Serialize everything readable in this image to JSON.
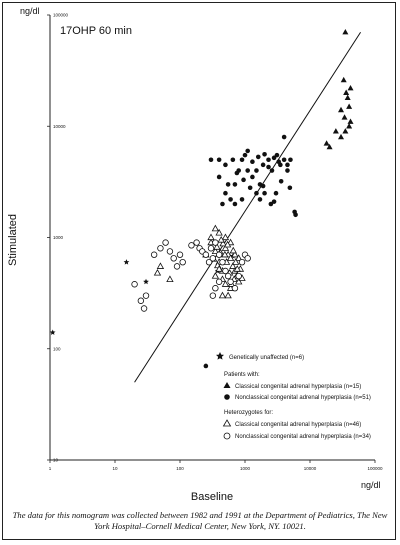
{
  "chart_data": {
    "type": "scatter",
    "title": "17OHP 60 min",
    "xlabel": "Baseline",
    "ylabel": "Stimulated",
    "x_unit": "ng/dl",
    "y_unit": "ng/dl",
    "xscale": "log",
    "yscale": "log",
    "xlim": [
      1,
      100000
    ],
    "ylim": [
      10,
      100000
    ],
    "x_ticks": [
      "1",
      "10",
      "100",
      "1000",
      "10000",
      "100000"
    ],
    "y_ticks": [
      "10",
      "100",
      "1000",
      "10000",
      "100000"
    ],
    "regression_line": [
      [
        20,
        50
      ],
      [
        60000,
        70000
      ]
    ],
    "legend": {
      "placement": "bottom-right",
      "entries": {
        "unaffected": "Genetically unaffected (n=6)",
        "patients_header": "Patients with:",
        "classical": "Classical congenital adrenal hyperplasia (n=15)",
        "nonclassical": "Nonclassical congenital adrenal hyperplasia (n=51)",
        "hetero_header": "Heterozygotes for:",
        "het_classical": "Classical congenital adrenal hyperplasia (n=46)",
        "het_nonclassical": "Nonclassical congenital adrenal hyperplasia (n=34)"
      }
    },
    "series": [
      {
        "key": "unaffected",
        "marker": "star",
        "points": [
          [
            15,
            600
          ],
          [
            30,
            400
          ],
          [
            40,
            700
          ],
          [
            380,
            500
          ],
          [
            650,
            680
          ],
          [
            1.1,
            140
          ]
        ]
      },
      {
        "key": "classical",
        "marker": "filled-triangle",
        "points": [
          [
            35000,
            70000
          ],
          [
            33000,
            26000
          ],
          [
            30000,
            14000
          ],
          [
            36000,
            20000
          ],
          [
            38000,
            18000
          ],
          [
            40000,
            15000
          ],
          [
            42000,
            22000
          ],
          [
            40000,
            10000
          ],
          [
            35000,
            9000
          ],
          [
            30000,
            8000
          ],
          [
            25000,
            9000
          ],
          [
            20000,
            6500
          ],
          [
            18000,
            7000
          ],
          [
            42000,
            11000
          ],
          [
            34000,
            12000
          ]
        ]
      },
      {
        "key": "nonclassical",
        "marker": "filled-circle",
        "points": [
          [
            300,
            5000
          ],
          [
            400,
            5000
          ],
          [
            500,
            4500
          ],
          [
            650,
            5000
          ],
          [
            400,
            3500
          ],
          [
            550,
            3000
          ],
          [
            500,
            2500
          ],
          [
            700,
            3000
          ],
          [
            800,
            4000
          ],
          [
            900,
            5000
          ],
          [
            1000,
            5500
          ],
          [
            1100,
            4000
          ],
          [
            1300,
            3500
          ],
          [
            1500,
            4000
          ],
          [
            1700,
            3000
          ],
          [
            1500,
            2500
          ],
          [
            1900,
            4500
          ],
          [
            2300,
            5000
          ],
          [
            2600,
            4000
          ],
          [
            3100,
            5500
          ],
          [
            3500,
            4500
          ],
          [
            4000,
            5000
          ],
          [
            4500,
            4000
          ],
          [
            5000,
            5000
          ],
          [
            1700,
            2200
          ],
          [
            2000,
            2500
          ],
          [
            2500,
            2000
          ],
          [
            3000,
            2500
          ],
          [
            5800,
            1700
          ],
          [
            6000,
            1600
          ],
          [
            4000,
            8000
          ],
          [
            700,
            2000
          ],
          [
            600,
            2200
          ],
          [
            1200,
            2800
          ],
          [
            3600,
            3200
          ],
          [
            2000,
            5600
          ],
          [
            2800,
            5200
          ],
          [
            1100,
            6000
          ],
          [
            900,
            2200
          ],
          [
            1300,
            4800
          ],
          [
            450,
            2000
          ],
          [
            750,
            3800
          ],
          [
            950,
            3300
          ],
          [
            2300,
            4300
          ],
          [
            3300,
            4800
          ],
          [
            1600,
            5300
          ],
          [
            4500,
            4500
          ],
          [
            4900,
            2800
          ],
          [
            2800,
            2100
          ],
          [
            1900,
            2900
          ],
          [
            250,
            70
          ]
        ]
      },
      {
        "key": "het_classical",
        "marker": "open-triangle",
        "points": [
          [
            300,
            900
          ],
          [
            350,
            750
          ],
          [
            400,
            600
          ],
          [
            450,
            500
          ],
          [
            500,
            800
          ],
          [
            550,
            700
          ],
          [
            600,
            650
          ],
          [
            650,
            550
          ],
          [
            700,
            500
          ],
          [
            750,
            450
          ],
          [
            800,
            400
          ],
          [
            700,
            700
          ],
          [
            600,
            900
          ],
          [
            500,
            1000
          ],
          [
            400,
            1100
          ],
          [
            350,
            1200
          ],
          [
            300,
            1000
          ],
          [
            250,
            700
          ],
          [
            600,
            350
          ],
          [
            550,
            300
          ],
          [
            500,
            380
          ],
          [
            450,
            420
          ],
          [
            800,
            650
          ],
          [
            850,
            520
          ],
          [
            900,
            430
          ],
          [
            350,
            450
          ],
          [
            380,
            560
          ],
          [
            420,
            730
          ],
          [
            460,
            880
          ],
          [
            520,
            600
          ],
          [
            580,
            480
          ],
          [
            620,
            380
          ],
          [
            660,
            760
          ],
          [
            720,
            600
          ],
          [
            760,
            520
          ],
          [
            330,
            640
          ],
          [
            370,
            820
          ],
          [
            430,
            950
          ],
          [
            490,
            700
          ],
          [
            540,
            860
          ],
          [
            680,
            420
          ],
          [
            400,
            520
          ],
          [
            450,
            300
          ],
          [
            50,
            550
          ],
          [
            45,
            480
          ],
          [
            70,
            420
          ]
        ]
      },
      {
        "key": "het_nonclassical",
        "marker": "open-circle",
        "points": [
          [
            20,
            380
          ],
          [
            25,
            270
          ],
          [
            30,
            300
          ],
          [
            28,
            230
          ],
          [
            40,
            700
          ],
          [
            50,
            800
          ],
          [
            60,
            900
          ],
          [
            70,
            750
          ],
          [
            80,
            650
          ],
          [
            90,
            550
          ],
          [
            100,
            700
          ],
          [
            110,
            600
          ],
          [
            150,
            850
          ],
          [
            180,
            900
          ],
          [
            200,
            800
          ],
          [
            220,
            750
          ],
          [
            250,
            700
          ],
          [
            280,
            600
          ],
          [
            320,
            650
          ],
          [
            300,
            800
          ],
          [
            350,
            900
          ],
          [
            400,
            700
          ],
          [
            450,
            600
          ],
          [
            500,
            500
          ],
          [
            550,
            450
          ],
          [
            600,
            400
          ],
          [
            700,
            350
          ],
          [
            800,
            450
          ],
          [
            900,
            600
          ],
          [
            1000,
            700
          ],
          [
            1100,
            650
          ],
          [
            400,
            400
          ],
          [
            350,
            350
          ],
          [
            320,
            300
          ]
        ]
      }
    ]
  },
  "caption": "The data for this nomogram was collected between 1982 and 1991 at the Department of Pediatrics, The New York Hospital–Cornell Medical Center, New York, NY.  10021."
}
